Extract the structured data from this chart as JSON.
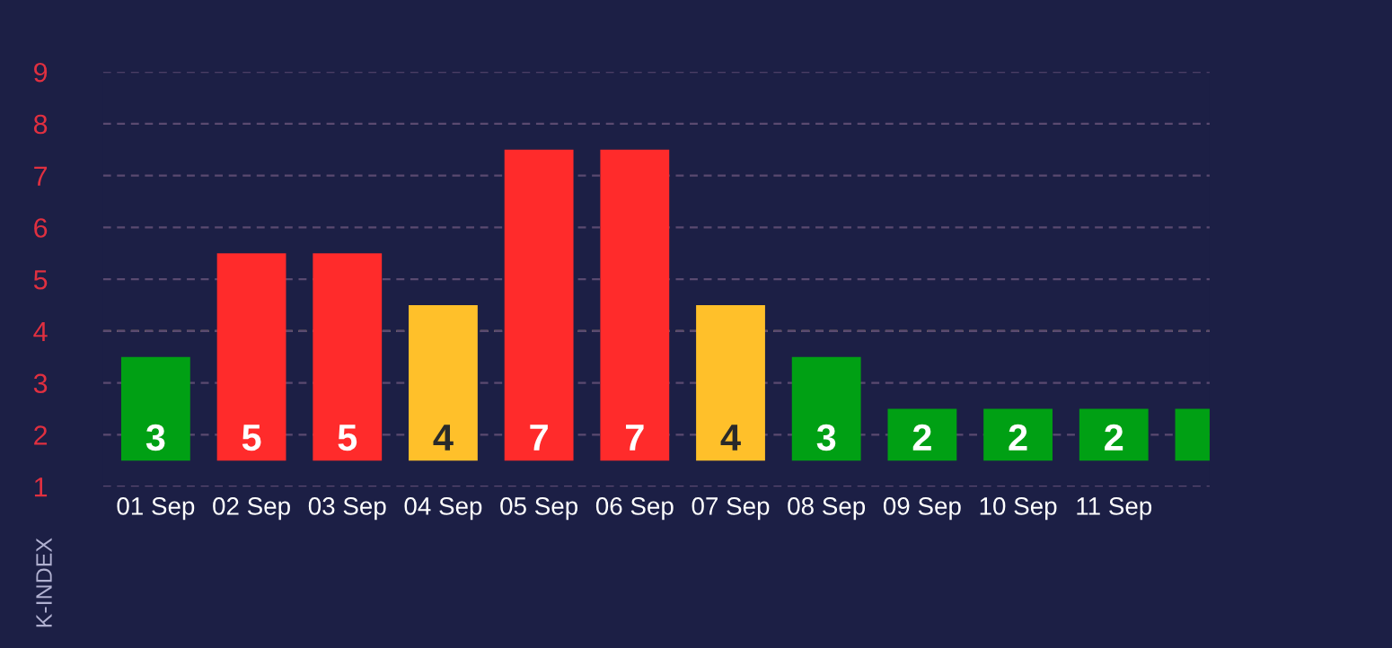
{
  "chart_data": {
    "type": "bar",
    "ylabel": "K-INDEX",
    "categories": [
      "01 Sep",
      "02 Sep",
      "03 Sep",
      "04 Sep",
      "05 Sep",
      "06 Sep",
      "07 Sep",
      "08 Sep",
      "09 Sep",
      "10 Sep",
      "11 Sep",
      null
    ],
    "base": [
      1.5,
      1.5,
      1.5,
      1.5,
      1.5,
      1.5,
      1.5,
      1.5,
      1.5,
      1.5,
      1.5,
      1.5
    ],
    "values": [
      2,
      4,
      4,
      3,
      6,
      6,
      3,
      2,
      1,
      1,
      1,
      1
    ],
    "value_labels": [
      "3",
      "5",
      "5",
      "4",
      "7",
      "7",
      "4",
      "3",
      "2",
      "2",
      "2",
      null
    ],
    "colors": [
      "#00a014",
      "#ff2b2b",
      "#ff2b2b",
      "#ffc02a",
      "#ff2b2b",
      "#ff2b2b",
      "#ffc02a",
      "#00a014",
      "#00a014",
      "#00a014",
      "#00a014",
      "#00a014"
    ],
    "ylim": [
      1,
      9
    ],
    "yticks": [
      1,
      2,
      3,
      4,
      5,
      6,
      7,
      8,
      9
    ],
    "grid": "y",
    "ref_lines": [
      {
        "axis": "y",
        "value": 4,
        "color": "#b8a060",
        "line_style": "dashed"
      }
    ]
  }
}
